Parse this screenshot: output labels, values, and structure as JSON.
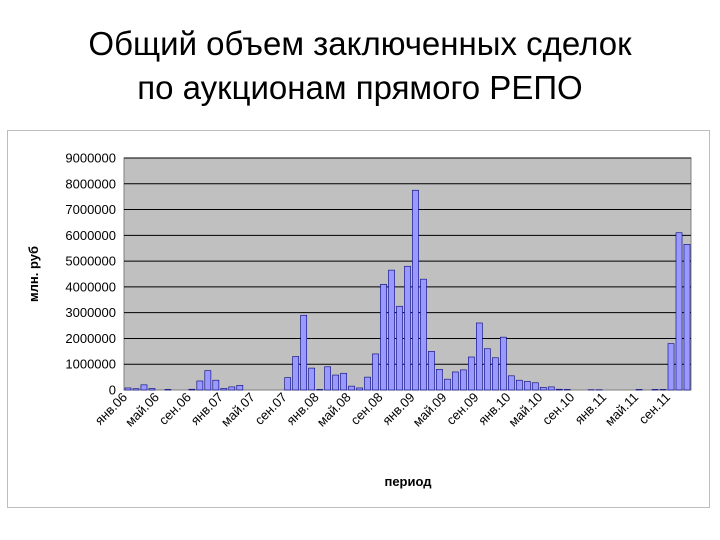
{
  "slide": {
    "title_line1": "Общий объем заключенных сделок",
    "title_line2": "по аукционам прямого РЕПО"
  },
  "chart_data": {
    "type": "bar",
    "title": "",
    "xlabel": "период",
    "ylabel": "млн. руб",
    "ylim": [
      0,
      9000000
    ],
    "y_ticks": [
      0,
      1000000,
      2000000,
      3000000,
      4000000,
      5000000,
      6000000,
      7000000,
      8000000,
      9000000
    ],
    "grid": "horizontal",
    "legend": "none",
    "bar_color": "#9999ff",
    "plot_background": "#c0c0c0",
    "x_tick_labels": [
      {
        "label": "янв.06",
        "index": 0
      },
      {
        "label": "май.06",
        "index": 4
      },
      {
        "label": "сен.06",
        "index": 8
      },
      {
        "label": "янв.07",
        "index": 12
      },
      {
        "label": "май.07",
        "index": 16
      },
      {
        "label": "сен.07",
        "index": 20
      },
      {
        "label": "янв.08",
        "index": 24
      },
      {
        "label": "май.08",
        "index": 28
      },
      {
        "label": "сен.08",
        "index": 32
      },
      {
        "label": "янв.09",
        "index": 36
      },
      {
        "label": "май.09",
        "index": 40
      },
      {
        "label": "сен.09",
        "index": 44
      },
      {
        "label": "янв.10",
        "index": 48
      },
      {
        "label": "май.10",
        "index": 52
      },
      {
        "label": "сен.10",
        "index": 56
      },
      {
        "label": "янв.11",
        "index": 60
      },
      {
        "label": "май.11",
        "index": 64
      },
      {
        "label": "сен.11",
        "index": 68
      }
    ],
    "values": [
      80000,
      50000,
      200000,
      60000,
      0,
      20000,
      0,
      0,
      30000,
      350000,
      750000,
      380000,
      60000,
      120000,
      180000,
      0,
      0,
      0,
      0,
      0,
      480000,
      1300000,
      2900000,
      850000,
      20000,
      900000,
      580000,
      650000,
      150000,
      80000,
      500000,
      1400000,
      4100000,
      4650000,
      3250000,
      4800000,
      7750000,
      4300000,
      1500000,
      800000,
      420000,
      700000,
      780000,
      1280000,
      2600000,
      1600000,
      1250000,
      2050000,
      550000,
      380000,
      330000,
      280000,
      100000,
      120000,
      30000,
      20000,
      0,
      0,
      10000,
      10000,
      0,
      0,
      0,
      0,
      20000,
      0,
      20000,
      20000,
      1800000,
      6100000,
      5650000
    ]
  }
}
